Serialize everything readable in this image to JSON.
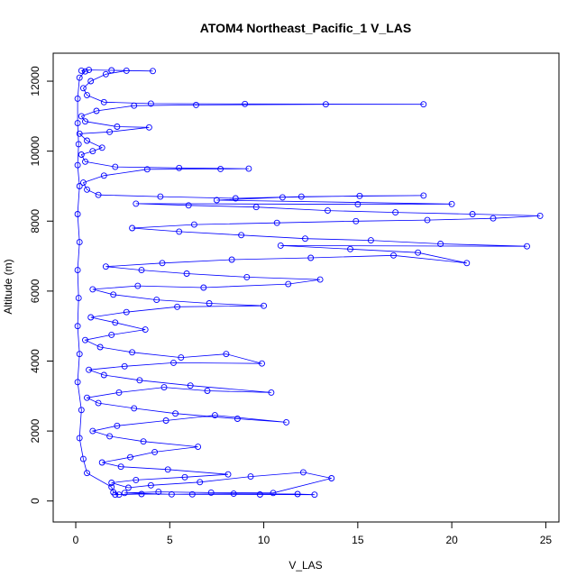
{
  "chart_data": {
    "type": "scatter",
    "title": "ATOM4 Northeast_Pacific_1 V_LAS",
    "xlabel": "V_LAS",
    "ylabel": "Altitude (m)",
    "xlim": [
      -1.2,
      25.7
    ],
    "ylim": [
      -600,
      12800
    ],
    "xticks": [
      0,
      5,
      10,
      15,
      20,
      25
    ],
    "yticks": [
      0,
      2000,
      4000,
      6000,
      8000,
      10000,
      12000
    ],
    "grid": false,
    "legend": "none",
    "series_color": "#0000ff",
    "line_color_alt": "#000000",
    "marker": "open-circle",
    "note_points": "points below are an approximate reading of the plotted profile (V_LAS vs altitude), connected in sampling order",
    "points": [
      [
        2.1,
        180
      ],
      [
        3.5,
        200
      ],
      [
        6.2,
        190
      ],
      [
        9.8,
        185
      ],
      [
        12.7,
        180
      ],
      [
        11.8,
        200
      ],
      [
        8.4,
        210
      ],
      [
        5.1,
        190
      ],
      [
        2.6,
        230
      ],
      [
        4.4,
        260
      ],
      [
        7.2,
        240
      ],
      [
        10.5,
        230
      ],
      [
        13.6,
        650
      ],
      [
        12.1,
        820
      ],
      [
        9.3,
        700
      ],
      [
        6.6,
        540
      ],
      [
        4.0,
        450
      ],
      [
        2.8,
        380
      ],
      [
        1.9,
        520
      ],
      [
        3.2,
        600
      ],
      [
        5.8,
        680
      ],
      [
        8.1,
        760
      ],
      [
        4.9,
        900
      ],
      [
        2.4,
        980
      ],
      [
        1.4,
        1100
      ],
      [
        2.9,
        1250
      ],
      [
        4.2,
        1400
      ],
      [
        6.5,
        1550
      ],
      [
        3.6,
        1700
      ],
      [
        1.8,
        1850
      ],
      [
        0.9,
        2000
      ],
      [
        2.2,
        2150
      ],
      [
        4.8,
        2300
      ],
      [
        7.4,
        2450
      ],
      [
        11.2,
        2250
      ],
      [
        8.6,
        2350
      ],
      [
        5.3,
        2500
      ],
      [
        3.1,
        2650
      ],
      [
        1.2,
        2800
      ],
      [
        0.6,
        2950
      ],
      [
        2.3,
        3100
      ],
      [
        4.7,
        3250
      ],
      [
        7.0,
        3150
      ],
      [
        10.4,
        3100
      ],
      [
        6.1,
        3300
      ],
      [
        3.4,
        3450
      ],
      [
        1.5,
        3600
      ],
      [
        0.7,
        3750
      ],
      [
        2.6,
        3850
      ],
      [
        5.2,
        3950
      ],
      [
        9.9,
        3930
      ],
      [
        8.0,
        4200
      ],
      [
        5.6,
        4100
      ],
      [
        3.0,
        4250
      ],
      [
        1.3,
        4400
      ],
      [
        0.5,
        4600
      ],
      [
        1.9,
        4750
      ],
      [
        3.7,
        4900
      ],
      [
        2.1,
        5100
      ],
      [
        0.8,
        5250
      ],
      [
        2.7,
        5400
      ],
      [
        5.4,
        5550
      ],
      [
        10.0,
        5580
      ],
      [
        7.1,
        5650
      ],
      [
        4.3,
        5750
      ],
      [
        2.0,
        5900
      ],
      [
        0.9,
        6050
      ],
      [
        3.3,
        6150
      ],
      [
        6.8,
        6100
      ],
      [
        11.3,
        6200
      ],
      [
        13.0,
        6330
      ],
      [
        9.1,
        6400
      ],
      [
        5.9,
        6500
      ],
      [
        3.5,
        6600
      ],
      [
        1.6,
        6700
      ],
      [
        4.6,
        6800
      ],
      [
        8.3,
        6900
      ],
      [
        12.5,
        6950
      ],
      [
        16.9,
        7020
      ],
      [
        20.8,
        6800
      ],
      [
        18.2,
        7100
      ],
      [
        14.6,
        7200
      ],
      [
        10.9,
        7300
      ],
      [
        24.0,
        7280
      ],
      [
        19.4,
        7350
      ],
      [
        15.7,
        7450
      ],
      [
        12.2,
        7500
      ],
      [
        8.8,
        7600
      ],
      [
        5.5,
        7700
      ],
      [
        3.0,
        7800
      ],
      [
        6.3,
        7900
      ],
      [
        10.7,
        7950
      ],
      [
        14.9,
        8000
      ],
      [
        18.7,
        8030
      ],
      [
        22.2,
        8080
      ],
      [
        24.7,
        8150
      ],
      [
        21.1,
        8200
      ],
      [
        17.0,
        8250
      ],
      [
        13.4,
        8300
      ],
      [
        9.6,
        8400
      ],
      [
        6.0,
        8450
      ],
      [
        3.2,
        8500
      ],
      [
        15.0,
        8480
      ],
      [
        20.0,
        8490
      ],
      [
        7.5,
        8600
      ],
      [
        11.0,
        8680
      ],
      [
        15.1,
        8720
      ],
      [
        18.5,
        8730
      ],
      [
        12.0,
        8700
      ],
      [
        8.5,
        8650
      ],
      [
        4.5,
        8700
      ],
      [
        1.2,
        8750
      ],
      [
        0.6,
        8900
      ],
      [
        0.4,
        9100
      ],
      [
        1.5,
        9300
      ],
      [
        3.8,
        9480
      ],
      [
        7.7,
        9490
      ],
      [
        9.2,
        9500
      ],
      [
        5.5,
        9520
      ],
      [
        2.1,
        9550
      ],
      [
        0.5,
        9700
      ],
      [
        0.3,
        9900
      ],
      [
        0.9,
        10000
      ],
      [
        1.4,
        10100
      ],
      [
        0.6,
        10300
      ],
      [
        0.2,
        10500
      ],
      [
        1.8,
        10550
      ],
      [
        3.9,
        10680
      ],
      [
        2.2,
        10700
      ],
      [
        0.5,
        10850
      ],
      [
        0.3,
        11000
      ],
      [
        1.1,
        11150
      ],
      [
        3.1,
        11300
      ],
      [
        6.4,
        11320
      ],
      [
        13.3,
        11340
      ],
      [
        18.5,
        11340
      ],
      [
        9.0,
        11350
      ],
      [
        4.0,
        11360
      ],
      [
        1.5,
        11400
      ],
      [
        0.6,
        11600
      ],
      [
        0.4,
        11800
      ],
      [
        0.8,
        12000
      ],
      [
        1.6,
        12200
      ],
      [
        2.7,
        12300
      ],
      [
        4.1,
        12290
      ],
      [
        1.9,
        12310
      ],
      [
        0.7,
        12320
      ],
      [
        0.3,
        12300
      ],
      [
        0.5,
        12280
      ],
      [
        0.2,
        12100
      ],
      [
        0.1,
        11500
      ],
      [
        0.1,
        10800
      ],
      [
        0.15,
        10200
      ],
      [
        0.1,
        9600
      ],
      [
        0.2,
        9000
      ],
      [
        0.1,
        8200
      ],
      [
        0.2,
        7400
      ],
      [
        0.1,
        6600
      ],
      [
        0.15,
        5800
      ],
      [
        0.1,
        5000
      ],
      [
        0.2,
        4200
      ],
      [
        0.1,
        3400
      ],
      [
        0.3,
        2600
      ],
      [
        0.2,
        1800
      ],
      [
        0.4,
        1200
      ],
      [
        0.6,
        800
      ],
      [
        1.9,
        400
      ],
      [
        2.0,
        250
      ],
      [
        2.3,
        180
      ]
    ]
  }
}
